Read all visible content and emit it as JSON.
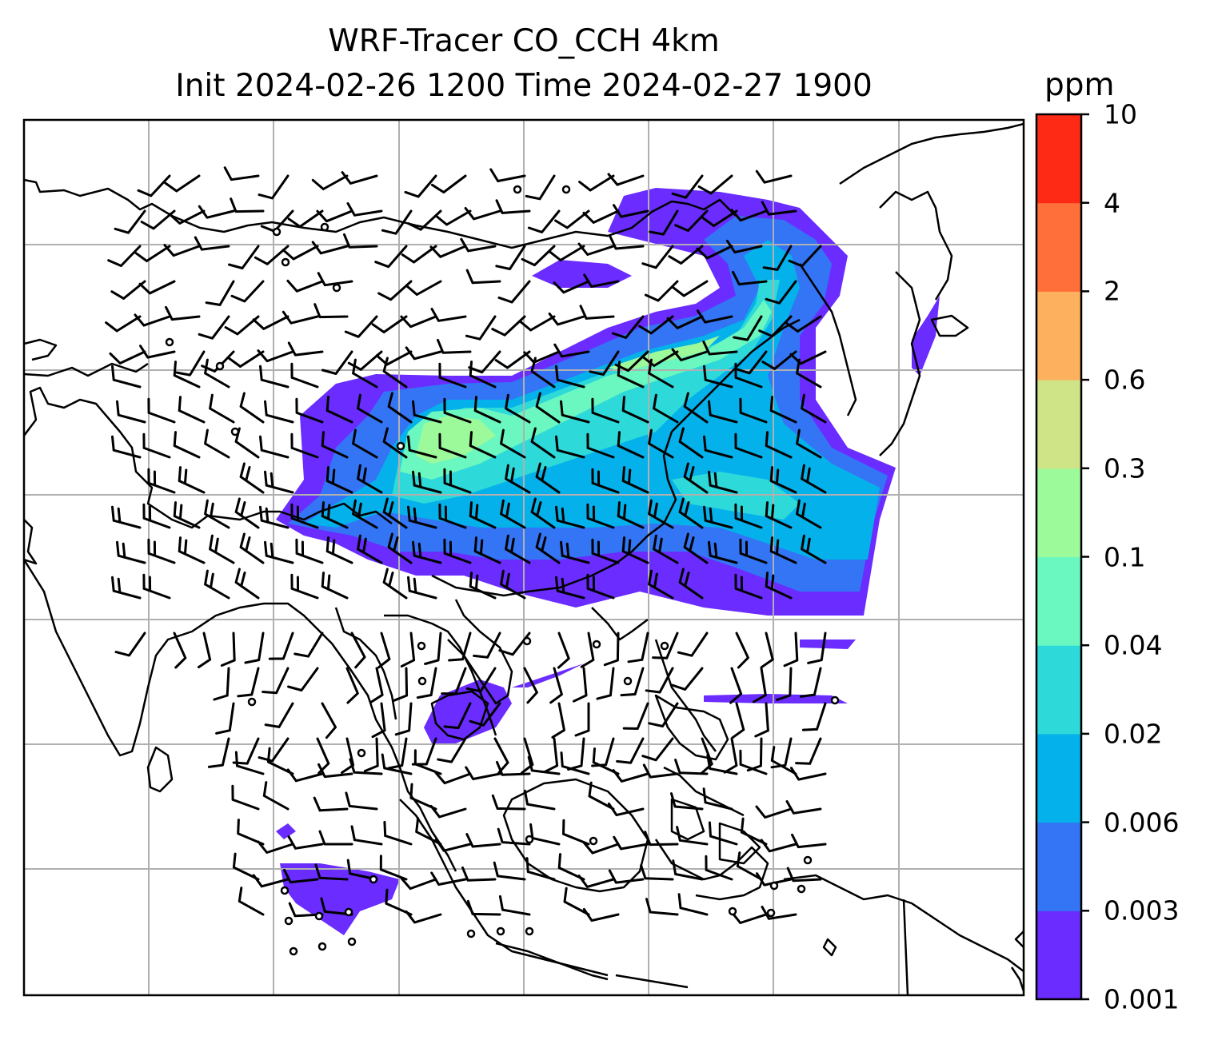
{
  "title": {
    "line1": "WRF-Tracer CO_CCH 4km",
    "line2": "Init 2024-02-26 1200 Time 2024-02-27 1900"
  },
  "colorbar": {
    "unit": "ppm",
    "levels": [
      "0.001",
      "0.003",
      "0.006",
      "0.02",
      "0.04",
      "0.1",
      "0.3",
      "0.6",
      "2",
      "4",
      "10"
    ],
    "colors": [
      "#6a2cff",
      "#3375f5",
      "#05b1ea",
      "#2ed9d9",
      "#6af7c0",
      "#9dfa9a",
      "#cfe387",
      "#fdb05d",
      "#ff6f3a",
      "#ff2a15"
    ]
  },
  "map": {
    "gridlines": true,
    "coastline_color": "#000000",
    "grid_color": "#b0b0b0"
  }
}
